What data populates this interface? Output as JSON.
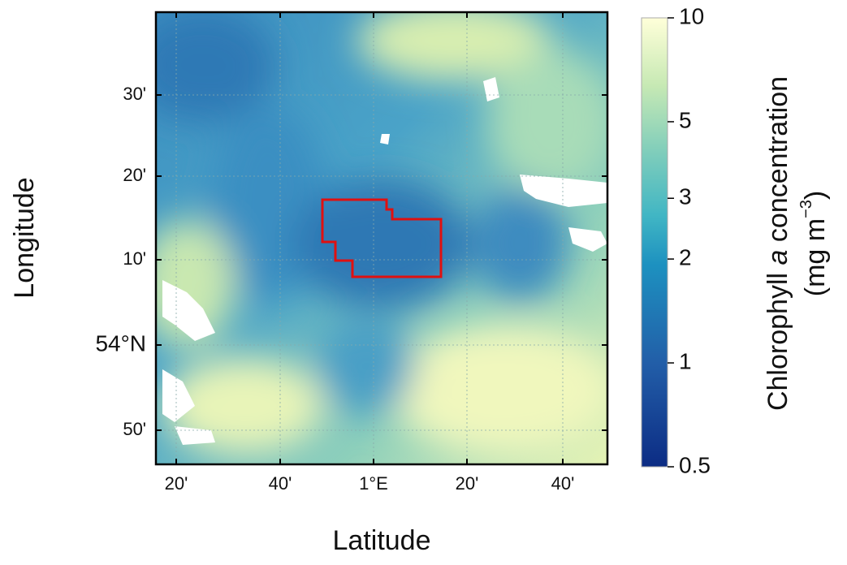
{
  "map": {
    "x_label": "Latitude",
    "y_label": "Longitude",
    "x_ticks": [
      "20'",
      "40'",
      "1°E",
      "20'",
      "40'"
    ],
    "y_ticks": [
      "30'",
      "20'",
      "10'",
      "54°N",
      "50'"
    ],
    "colorbar": {
      "title_parts": [
        "Chlorophyll",
        "a",
        "concentration"
      ],
      "unit_parts": [
        "(mg m",
        "−3",
        ")"
      ],
      "scale": "log",
      "lim": [
        0.5,
        10
      ],
      "ticks": [
        10,
        5,
        3,
        2,
        1,
        0.5
      ]
    }
  }
}
